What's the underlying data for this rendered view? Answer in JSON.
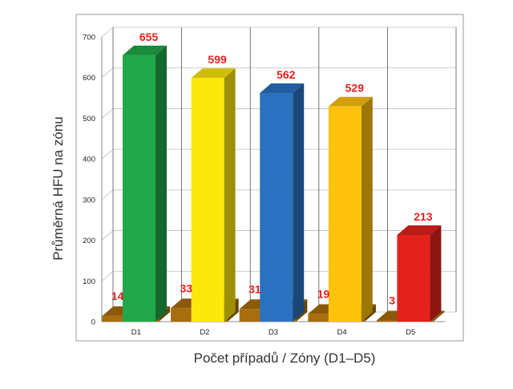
{
  "chart_data": {
    "type": "bar",
    "title": "",
    "xlabel": "Počet případů / Zóny (D1–D5)",
    "ylabel": "Průměrná HFU na zónu",
    "categories": [
      "D1",
      "D2",
      "D3",
      "D4",
      "D5"
    ],
    "ylim": [
      0,
      700
    ],
    "yticks": [
      0,
      100,
      200,
      300,
      400,
      500,
      600,
      700
    ],
    "grid": true,
    "legend": "none",
    "series": [
      {
        "values": [
          14,
          33,
          31,
          19,
          3
        ],
        "color": "#a86d0c"
      },
      {
        "values": [
          655,
          599,
          562,
          529,
          213
        ],
        "colors": [
          "#22a84a",
          "#fde80b",
          "#2a72c0",
          "#fec20c",
          "#e3221c"
        ]
      }
    ]
  }
}
